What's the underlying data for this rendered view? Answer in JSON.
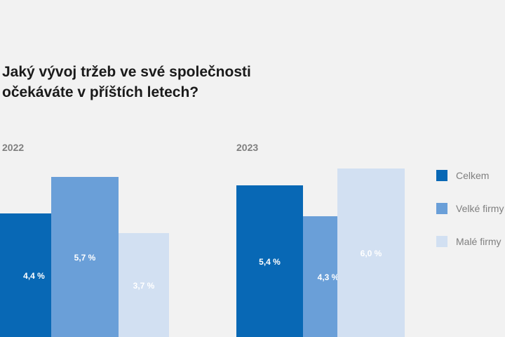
{
  "title_line1": "Jaký vývoj tržeb ve své společnosti",
  "title_line2": "očekáváte v příštích letech?",
  "chart_data": {
    "type": "bar",
    "categories": [
      "2022",
      "2023"
    ],
    "series": [
      {
        "name": "Celkem",
        "color": "#0868b5",
        "values": [
          4.4,
          5.4
        ],
        "labels": [
          "4,4 %",
          "5,4 %"
        ]
      },
      {
        "name": "Velké firmy",
        "color": "#6a9fd8",
        "values": [
          5.7,
          4.3
        ],
        "labels": [
          "5,7 %",
          "4,3 %"
        ]
      },
      {
        "name": "Malé firmy",
        "color": "#d2e0f2",
        "values": [
          3.7,
          6.0
        ],
        "labels": [
          "3,7 %",
          "6,0 %"
        ]
      }
    ],
    "legend": [
      "Celkem",
      "Velké firmy",
      "Malé firmy"
    ],
    "legend_position": "right"
  }
}
